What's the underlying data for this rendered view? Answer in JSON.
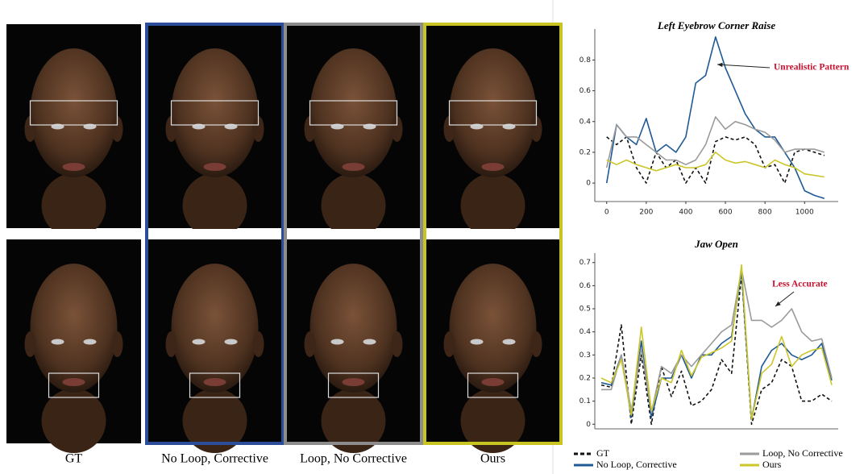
{
  "figure": {
    "columns": [
      {
        "label": "GT",
        "color": null
      },
      {
        "label": "No Loop, Corrective",
        "color": "#2b4d9a"
      },
      {
        "label": "Loop, No Corrective",
        "color": "#8c8c8c"
      },
      {
        "label": "Ours",
        "color": "#c8c421"
      }
    ]
  },
  "chart_data": [
    {
      "type": "line",
      "title": "Left Eyebrow Corner Raise",
      "annotation": "Unrealistic Pattern",
      "x": [
        0,
        50,
        100,
        150,
        200,
        250,
        300,
        350,
        400,
        450,
        500,
        550,
        600,
        650,
        700,
        750,
        800,
        850,
        900,
        950,
        1000,
        1050,
        1100
      ],
      "xlim": [
        -60,
        1170
      ],
      "xticks": [
        0,
        200,
        400,
        600,
        800,
        1000
      ],
      "ylim": [
        -0.12,
        0.97
      ],
      "yticks": [
        0.0,
        0.2,
        0.4,
        0.6,
        0.8
      ],
      "series": [
        {
          "name": "GT",
          "color": "#111111",
          "dash": true,
          "values": [
            0.3,
            0.25,
            0.3,
            0.1,
            0.0,
            0.2,
            0.1,
            0.15,
            0.0,
            0.1,
            0.0,
            0.27,
            0.3,
            0.28,
            0.3,
            0.25,
            0.1,
            0.12,
            0.0,
            0.2,
            0.22,
            0.2,
            0.18
          ]
        },
        {
          "name": "No Loop, Corrective",
          "color": "#1f5a96",
          "dash": false,
          "values": [
            0.0,
            0.38,
            0.3,
            0.25,
            0.42,
            0.2,
            0.25,
            0.2,
            0.3,
            0.65,
            0.7,
            0.95,
            0.75,
            0.6,
            0.45,
            0.35,
            0.3,
            0.3,
            0.2,
            0.1,
            -0.05,
            -0.08,
            -0.1
          ]
        },
        {
          "name": "Loop, No Corrective",
          "color": "#9a9a9a",
          "dash": false,
          "values": [
            0.1,
            0.38,
            0.3,
            0.3,
            0.25,
            0.2,
            0.15,
            0.15,
            0.12,
            0.15,
            0.25,
            0.43,
            0.35,
            0.4,
            0.38,
            0.35,
            0.33,
            0.28,
            0.2,
            0.22,
            0.22,
            0.22,
            0.2
          ]
        },
        {
          "name": "Ours",
          "color": "#cbc62a",
          "dash": false,
          "values": [
            0.15,
            0.12,
            0.15,
            0.12,
            0.1,
            0.08,
            0.1,
            0.12,
            0.1,
            0.1,
            0.12,
            0.2,
            0.15,
            0.13,
            0.14,
            0.12,
            0.1,
            0.15,
            0.12,
            0.1,
            0.06,
            0.05,
            0.04
          ]
        }
      ]
    },
    {
      "type": "line",
      "title": "Jaw Open",
      "annotation": "Less Accurate",
      "ylim": [
        -0.02,
        0.72
      ],
      "yticks": [
        0.0,
        0.1,
        0.2,
        0.3,
        0.4,
        0.5,
        0.6,
        0.7
      ],
      "series": [
        {
          "name": "GT",
          "color": "#111111",
          "dash": true,
          "values": [
            0.17,
            0.16,
            0.43,
            0.0,
            0.3,
            0.0,
            0.25,
            0.12,
            0.23,
            0.08,
            0.1,
            0.15,
            0.28,
            0.22,
            0.65,
            0.0,
            0.15,
            0.18,
            0.28,
            0.25,
            0.1,
            0.1,
            0.13,
            0.1
          ]
        },
        {
          "name": "No Loop, Corrective",
          "color": "#1f5a96",
          "dash": false,
          "values": [
            0.18,
            0.17,
            0.3,
            0.03,
            0.36,
            0.03,
            0.2,
            0.2,
            0.3,
            0.2,
            0.3,
            0.3,
            0.35,
            0.38,
            0.66,
            0.02,
            0.25,
            0.32,
            0.35,
            0.3,
            0.28,
            0.3,
            0.35,
            0.19
          ]
        },
        {
          "name": "Loop, No Corrective",
          "color": "#9a9a9a",
          "dash": false,
          "values": [
            0.15,
            0.15,
            0.3,
            0.06,
            0.33,
            0.05,
            0.25,
            0.22,
            0.3,
            0.25,
            0.3,
            0.35,
            0.4,
            0.43,
            0.67,
            0.45,
            0.45,
            0.42,
            0.45,
            0.5,
            0.4,
            0.36,
            0.37,
            0.2
          ]
        },
        {
          "name": "Ours",
          "color": "#cbc62a",
          "dash": false,
          "values": [
            0.2,
            0.18,
            0.28,
            0.04,
            0.42,
            0.06,
            0.2,
            0.18,
            0.32,
            0.21,
            0.29,
            0.31,
            0.33,
            0.36,
            0.69,
            0.02,
            0.22,
            0.26,
            0.38,
            0.25,
            0.3,
            0.32,
            0.33,
            0.17
          ]
        }
      ]
    }
  ]
}
